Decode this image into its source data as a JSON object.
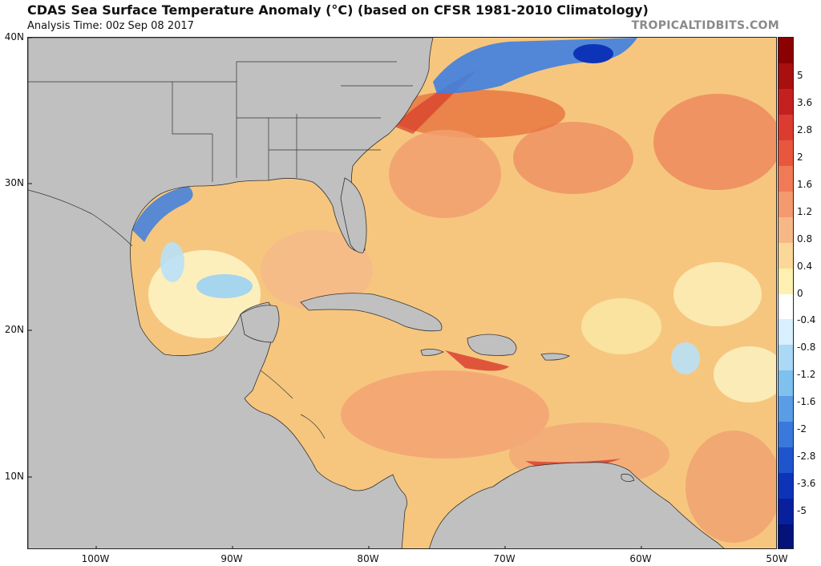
{
  "header": {
    "title": "CDAS Sea Surface Temperature Anomaly (°C) (based on CFSR 1981-2010 Climatology)",
    "subtitle": "Analysis Time: 00z Sep 08 2017",
    "brand": "TROPICALTIDBITS.COM"
  },
  "map": {
    "lat_labels": [
      "40N",
      "30N",
      "20N",
      "10N"
    ],
    "lon_labels": [
      "100W",
      "90W",
      "80W",
      "70W",
      "60W",
      "50W"
    ],
    "lat_values": [
      40,
      30,
      20,
      10
    ],
    "lon_values": [
      -100,
      -90,
      -80,
      -70,
      -60,
      -50
    ],
    "extent": {
      "lon_min": -105,
      "lon_max": -50,
      "lat_min": 5,
      "lat_max": 40
    },
    "land_color": "#c0c0c0"
  },
  "colorbar": {
    "labels": [
      "5",
      "3.6",
      "2.8",
      "2",
      "1.6",
      "1.2",
      "0.8",
      "0.4",
      "0",
      "-0.4",
      "-0.8",
      "-1.2",
      "-1.6",
      "-2",
      "-2.8",
      "-3.6",
      "-5"
    ],
    "colors_top_to_bottom": [
      "#8b0000",
      "#a80f0f",
      "#c42020",
      "#dc3b30",
      "#e8573d",
      "#f07a55",
      "#f49a6e",
      "#f7b888",
      "#fbd89a",
      "#fdf0b0",
      "#ffffff",
      "#d7efff",
      "#aad8f5",
      "#7ec0ee",
      "#5a9de6",
      "#3a78dc",
      "#1f55cc",
      "#0d34b8",
      "#08209c",
      "#04127a"
    ]
  }
}
